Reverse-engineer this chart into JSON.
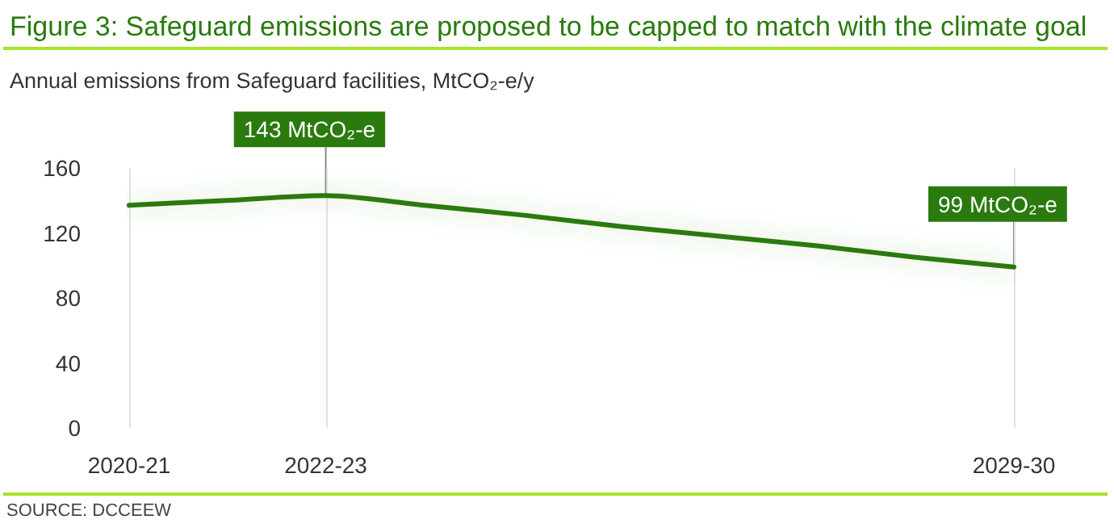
{
  "chart_data": {
    "type": "line",
    "title": "Figure 3: Safeguard emissions are proposed to be capped to match with the climate goal",
    "ylabel": "Annual emissions from Safeguard facilities, MtCO₂-e/y",
    "categories": [
      "2020-21",
      null,
      "2022-23",
      null,
      null,
      null,
      null,
      null,
      null,
      "2029-30"
    ],
    "series": [
      {
        "color": "#2a7a0e",
        "values": [
          137,
          140,
          143,
          137,
          131,
          124,
          118,
          112,
          105,
          99
        ]
      }
    ],
    "ylim": [
      0,
      160
    ],
    "yticks": [
      0,
      40,
      80,
      120,
      160
    ],
    "grid": "x",
    "marker": "none",
    "line_style": "solid",
    "annotations": [
      {
        "text": "143 MtCO₂-e",
        "x": "2022-23",
        "y": 143
      },
      {
        "text": "99 MtCO₂-e",
        "x": "2029-30",
        "y": 99
      },
      "SOURCE: DCCEEW"
    ]
  }
}
